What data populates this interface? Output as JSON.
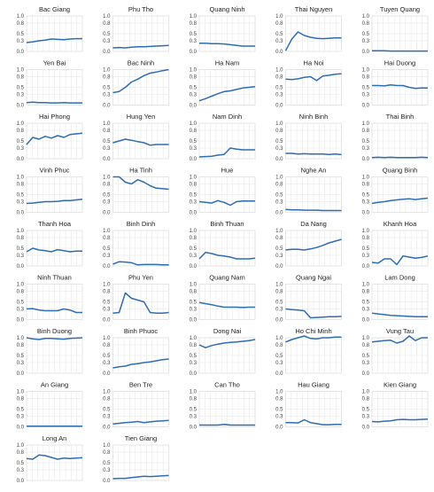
{
  "chart_data": {
    "type": "line",
    "layout": "small-multiples grid, 5 columns",
    "ylim": [
      0,
      1.0
    ],
    "yticks": [
      "0.0",
      "0.3",
      "0.5",
      "0.8",
      "1.0"
    ],
    "grid": true,
    "line_color": "#2f6db3",
    "x": [
      1,
      2,
      3,
      4,
      5,
      6,
      7,
      8,
      9,
      10
    ],
    "panels": [
      {
        "title": "Bac Giang",
        "values": [
          0.25,
          0.27,
          0.3,
          0.32,
          0.35,
          0.34,
          0.33,
          0.35,
          0.36,
          0.36
        ]
      },
      {
        "title": "Phu Tho",
        "values": [
          0.1,
          0.11,
          0.1,
          0.12,
          0.13,
          0.13,
          0.14,
          0.15,
          0.16,
          0.17
        ]
      },
      {
        "title": "Quang Ninh",
        "values": [
          0.23,
          0.23,
          0.22,
          0.22,
          0.21,
          0.19,
          0.17,
          0.15,
          0.15,
          0.15
        ]
      },
      {
        "title": "Thai Nguyen",
        "values": [
          0.02,
          0.35,
          0.55,
          0.45,
          0.4,
          0.37,
          0.36,
          0.37,
          0.38,
          0.38
        ]
      },
      {
        "title": "Tuyen Quang",
        "values": [
          0.02,
          0.02,
          0.02,
          0.01,
          0.01,
          0.01,
          0.01,
          0.01,
          0.01,
          0.01
        ]
      },
      {
        "title": "Yen Bai",
        "values": [
          0.07,
          0.08,
          0.07,
          0.07,
          0.06,
          0.06,
          0.07,
          0.06,
          0.06,
          0.06
        ]
      },
      {
        "title": "Bac Ninh",
        "values": [
          0.35,
          0.38,
          0.5,
          0.65,
          0.73,
          0.83,
          0.9,
          0.93,
          0.97,
          1.0
        ]
      },
      {
        "title": "Ha Nam",
        "values": [
          0.12,
          0.18,
          0.25,
          0.32,
          0.38,
          0.4,
          0.44,
          0.48,
          0.5,
          0.52
        ]
      },
      {
        "title": "Ha Noi",
        "values": [
          0.73,
          0.72,
          0.74,
          0.78,
          0.8,
          0.69,
          0.82,
          0.84,
          0.87,
          0.88
        ]
      },
      {
        "title": "Hai Duong",
        "values": [
          0.55,
          0.55,
          0.54,
          0.57,
          0.55,
          0.55,
          0.5,
          0.47,
          0.48,
          0.48
        ]
      },
      {
        "title": "Hai Phong",
        "values": [
          0.4,
          0.6,
          0.55,
          0.63,
          0.58,
          0.65,
          0.6,
          0.68,
          0.7,
          0.72
        ]
      },
      {
        "title": "Hung Yen",
        "values": [
          0.45,
          0.5,
          0.55,
          0.52,
          0.48,
          0.45,
          0.38,
          0.4,
          0.4,
          0.4
        ]
      },
      {
        "title": "Nam Dinh",
        "values": [
          0.05,
          0.06,
          0.07,
          0.1,
          0.12,
          0.3,
          0.27,
          0.25,
          0.25,
          0.25
        ]
      },
      {
        "title": "Ninh Binh",
        "values": [
          0.15,
          0.15,
          0.13,
          0.14,
          0.13,
          0.13,
          0.13,
          0.12,
          0.13,
          0.12
        ]
      },
      {
        "title": "Thai Binh",
        "values": [
          0.03,
          0.04,
          0.03,
          0.04,
          0.03,
          0.03,
          0.03,
          0.03,
          0.04,
          0.03
        ]
      },
      {
        "title": "Vinh Phuc",
        "values": [
          0.25,
          0.26,
          0.28,
          0.3,
          0.3,
          0.31,
          0.33,
          0.33,
          0.35,
          0.37
        ]
      },
      {
        "title": "Ha Tinh",
        "values": [
          1.0,
          1.0,
          0.85,
          0.8,
          0.92,
          0.85,
          0.75,
          0.68,
          0.67,
          0.65
        ]
      },
      {
        "title": "Hue",
        "values": [
          0.3,
          0.28,
          0.26,
          0.33,
          0.28,
          0.2,
          0.3,
          0.32,
          0.32,
          0.32
        ]
      },
      {
        "title": "Nghe An",
        "values": [
          0.08,
          0.07,
          0.07,
          0.06,
          0.06,
          0.06,
          0.05,
          0.05,
          0.05,
          0.05
        ]
      },
      {
        "title": "Quang Binh",
        "values": [
          0.25,
          0.28,
          0.3,
          0.33,
          0.35,
          0.37,
          0.38,
          0.36,
          0.38,
          0.4
        ]
      },
      {
        "title": "Thanh Hoa",
        "values": [
          0.4,
          0.5,
          0.45,
          0.43,
          0.4,
          0.46,
          0.43,
          0.4,
          0.42,
          0.42
        ]
      },
      {
        "title": "Binh Dinh",
        "values": [
          0.05,
          0.12,
          0.11,
          0.09,
          0.03,
          0.04,
          0.04,
          0.04,
          0.03,
          0.03
        ]
      },
      {
        "title": "Binh Thuan",
        "values": [
          0.2,
          0.38,
          0.35,
          0.3,
          0.28,
          0.25,
          0.2,
          0.2,
          0.2,
          0.22
        ]
      },
      {
        "title": "Da Nang",
        "values": [
          0.45,
          0.47,
          0.47,
          0.45,
          0.48,
          0.52,
          0.58,
          0.65,
          0.7,
          0.75
        ]
      },
      {
        "title": "Khanh Hoa",
        "values": [
          0.1,
          0.08,
          0.2,
          0.2,
          0.04,
          0.28,
          0.25,
          0.22,
          0.24,
          0.28
        ]
      },
      {
        "title": "Ninh Thuan",
        "values": [
          0.3,
          0.31,
          0.27,
          0.25,
          0.25,
          0.25,
          0.3,
          0.27,
          0.2,
          0.2
        ]
      },
      {
        "title": "Phu Yen",
        "values": [
          0.18,
          0.2,
          0.75,
          0.6,
          0.55,
          0.5,
          0.2,
          0.18,
          0.18,
          0.2
        ]
      },
      {
        "title": "Quang Nam",
        "values": [
          0.48,
          0.45,
          0.42,
          0.38,
          0.35,
          0.35,
          0.35,
          0.34,
          0.35,
          0.35
        ]
      },
      {
        "title": "Quang Ngai",
        "values": [
          0.3,
          0.28,
          0.27,
          0.25,
          0.05,
          0.06,
          0.07,
          0.08,
          0.08,
          0.09
        ]
      },
      {
        "title": "Lam Dong",
        "values": [
          0.18,
          0.16,
          0.14,
          0.12,
          0.11,
          0.1,
          0.09,
          0.08,
          0.08,
          0.08
        ]
      },
      {
        "title": "Binh Duong",
        "values": [
          1.0,
          0.97,
          0.95,
          0.98,
          0.98,
          0.97,
          0.96,
          0.98,
          0.99,
          1.0
        ]
      },
      {
        "title": "Binh Phuoc",
        "values": [
          0.15,
          0.18,
          0.2,
          0.25,
          0.27,
          0.3,
          0.32,
          0.35,
          0.38,
          0.4
        ]
      },
      {
        "title": "Dong Nai",
        "values": [
          0.8,
          0.72,
          0.78,
          0.82,
          0.85,
          0.87,
          0.88,
          0.9,
          0.92,
          0.95
        ]
      },
      {
        "title": "Ho Chi Minh",
        "values": [
          0.88,
          0.95,
          1.0,
          1.05,
          0.98,
          0.97,
          1.0,
          1.0,
          1.02,
          1.02
        ]
      },
      {
        "title": "Vung Tau",
        "values": [
          0.88,
          0.9,
          0.92,
          0.93,
          0.85,
          0.9,
          1.05,
          0.92,
          1.0,
          1.0
        ]
      },
      {
        "title": "An Giang",
        "values": [
          0.02,
          0.02,
          0.02,
          0.02,
          0.02,
          0.02,
          0.02,
          0.02,
          0.02,
          0.02
        ]
      },
      {
        "title": "Ben Tre",
        "values": [
          0.08,
          0.1,
          0.12,
          0.13,
          0.15,
          0.12,
          0.14,
          0.16,
          0.17,
          0.18
        ]
      },
      {
        "title": "Can Tho",
        "values": [
          0.05,
          0.05,
          0.05,
          0.05,
          0.07,
          0.05,
          0.05,
          0.05,
          0.05,
          0.05
        ]
      },
      {
        "title": "Hau Giang",
        "values": [
          0.12,
          0.12,
          0.11,
          0.2,
          0.12,
          0.09,
          0.06,
          0.06,
          0.07,
          0.07
        ]
      },
      {
        "title": "Kien Giang",
        "values": [
          0.15,
          0.14,
          0.16,
          0.17,
          0.2,
          0.21,
          0.2,
          0.2,
          0.21,
          0.22
        ]
      },
      {
        "title": "Long An",
        "values": [
          0.62,
          0.6,
          0.72,
          0.7,
          0.65,
          0.6,
          0.63,
          0.62,
          0.63,
          0.64
        ]
      },
      {
        "title": "Tien Giang",
        "values": [
          0.05,
          0.06,
          0.06,
          0.08,
          0.1,
          0.12,
          0.11,
          0.12,
          0.13,
          0.14
        ]
      }
    ]
  }
}
